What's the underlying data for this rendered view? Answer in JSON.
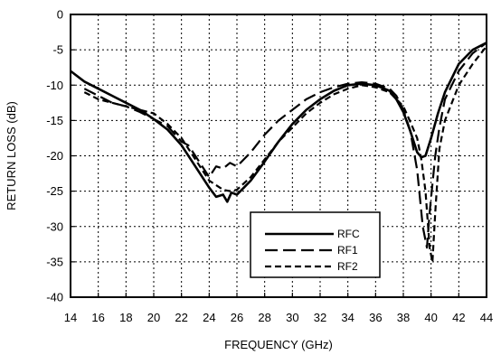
{
  "chart_data": {
    "type": "line",
    "xlabel": "FREQUENCY (GHz)",
    "ylabel": "RETURN LOSS (dB)",
    "xlim": [
      14,
      44
    ],
    "ylim": [
      -40,
      0
    ],
    "xticks": [
      "14",
      "16",
      "18",
      "20",
      "22",
      "24",
      "26",
      "28",
      "30",
      "32",
      "34",
      "36",
      "38",
      "40",
      "42",
      "44"
    ],
    "yticks": [
      "0",
      "-5",
      "-10",
      "-15",
      "-20",
      "-25",
      "-30",
      "-35",
      "-40"
    ],
    "grid": true,
    "legend_position": "lower-right",
    "series": [
      {
        "name": "RFC",
        "style": "solid",
        "x": [
          14,
          15,
          16,
          17,
          18,
          19,
          20,
          21,
          22,
          23,
          24,
          24.5,
          25,
          25.3,
          25.6,
          26,
          26.5,
          27,
          28,
          29,
          30,
          31,
          32,
          33,
          34,
          35,
          36,
          37,
          37.5,
          38,
          38.5,
          39,
          39.3,
          39.6,
          40,
          40.5,
          41,
          42,
          43,
          44
        ],
        "y": [
          -8,
          -9.5,
          -10.5,
          -11.5,
          -12.5,
          -13.5,
          -14.8,
          -16.3,
          -18.5,
          -21.5,
          -24.5,
          -25.8,
          -25.5,
          -26.5,
          -25.2,
          -25.5,
          -24.5,
          -23.5,
          -20.8,
          -18,
          -15.5,
          -13.5,
          -12,
          -10.8,
          -10,
          -9.8,
          -10,
          -10.8,
          -12,
          -13.8,
          -16.5,
          -19.5,
          -20.2,
          -20,
          -17.5,
          -14,
          -11,
          -7,
          -5,
          -4
        ]
      },
      {
        "name": "RF1",
        "style": "long-dash",
        "x": [
          15,
          16,
          17,
          18,
          19,
          20,
          21,
          22,
          22.5,
          23,
          24,
          24.5,
          25,
          25.5,
          26,
          26.5,
          27,
          28,
          29,
          30,
          31,
          32,
          33,
          34,
          35,
          36,
          37,
          37.5,
          38,
          38.5,
          39,
          39.4,
          39.7,
          39.9,
          40.1,
          40.3,
          40.6,
          41,
          42,
          43,
          44
        ],
        "y": [
          -10.5,
          -11.5,
          -12.5,
          -13,
          -13.8,
          -14.8,
          -15.8,
          -18,
          -18.5,
          -20,
          -23,
          -21.5,
          -21.8,
          -21,
          -21.5,
          -20.5,
          -19.5,
          -17,
          -15,
          -13.5,
          -12,
          -11,
          -10.3,
          -9.8,
          -9.6,
          -9.8,
          -10.5,
          -11.5,
          -13.5,
          -16.5,
          -22,
          -30,
          -33,
          -28,
          -24,
          -20,
          -16,
          -12,
          -8,
          -5.5,
          -4
        ]
      },
      {
        "name": "RF2",
        "style": "short-dash",
        "x": [
          15,
          16,
          17,
          18,
          19,
          20,
          21,
          22,
          23,
          24,
          25,
          25.5,
          26,
          27,
          28,
          29,
          30,
          31,
          32,
          33,
          34,
          35,
          36,
          37,
          38,
          38.5,
          39,
          39.3,
          39.6,
          39.9,
          40.1,
          40.3,
          40.6,
          41,
          42,
          43,
          44
        ],
        "y": [
          -11,
          -12,
          -12.5,
          -13,
          -13.5,
          -14,
          -15.5,
          -17.5,
          -20.5,
          -23.5,
          -24.8,
          -25,
          -24.8,
          -23,
          -20.5,
          -18,
          -16,
          -14,
          -12.5,
          -11.3,
          -10.5,
          -10,
          -10.3,
          -11,
          -13,
          -15.2,
          -17.5,
          -20.5,
          -25,
          -33,
          -35,
          -28,
          -19,
          -15,
          -10,
          -7,
          -4.5
        ]
      }
    ]
  }
}
